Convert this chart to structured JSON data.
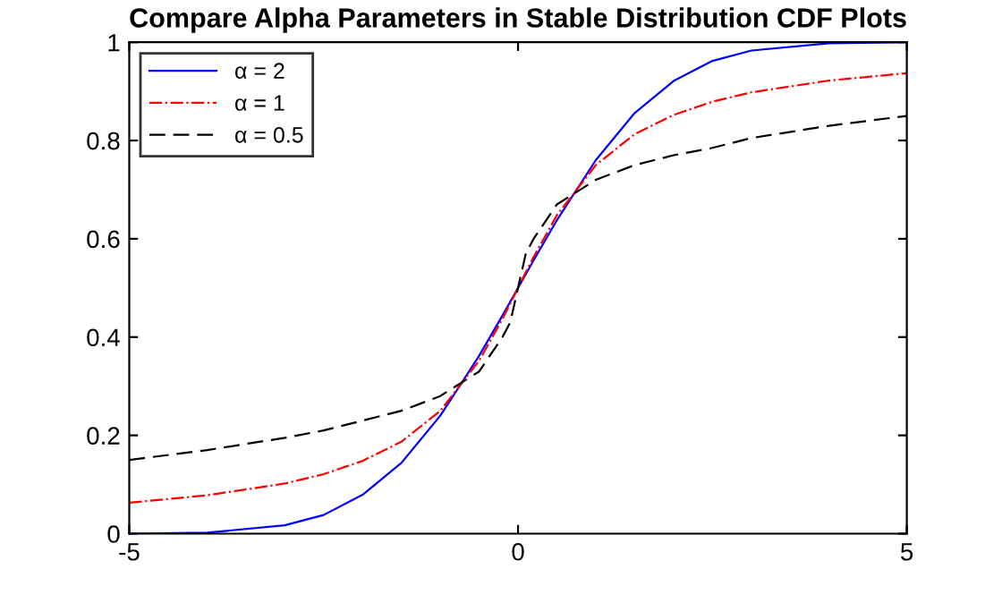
{
  "chart_data": {
    "type": "line",
    "title": "Compare Alpha Parameters in Stable Distribution CDF Plots",
    "x": [
      -5,
      -4,
      -3,
      -2.5,
      -2,
      -1.5,
      -1,
      -0.5,
      -0.2,
      -0.1,
      0,
      0.1,
      0.2,
      0.5,
      1,
      1.5,
      2,
      2.5,
      3,
      4,
      5
    ],
    "series": [
      {
        "name": "α = 2",
        "color": "#0000ff",
        "line_style": "solid",
        "values": [
          0,
          0.002,
          0.017,
          0.038,
          0.079,
          0.144,
          0.24,
          0.362,
          0.444,
          0.472,
          0.5,
          0.528,
          0.556,
          0.638,
          0.76,
          0.856,
          0.921,
          0.962,
          0.983,
          0.998,
          1
        ]
      },
      {
        "name": "α = 1",
        "color": "#ff0000",
        "line_style": "dashdot",
        "values": [
          0.063,
          0.078,
          0.102,
          0.121,
          0.148,
          0.187,
          0.25,
          0.352,
          0.437,
          0.468,
          0.5,
          0.532,
          0.563,
          0.648,
          0.75,
          0.813,
          0.852,
          0.879,
          0.898,
          0.922,
          0.937
        ]
      },
      {
        "name": "α = 0.5",
        "color": "#000000",
        "line_style": "dashed",
        "values": [
          0.15,
          0.17,
          0.195,
          0.21,
          0.23,
          0.25,
          0.28,
          0.33,
          0.4,
          0.43,
          0.5,
          0.57,
          0.6,
          0.67,
          0.72,
          0.75,
          0.77,
          0.785,
          0.805,
          0.83,
          0.85
        ]
      }
    ],
    "xlim": [
      -5,
      5
    ],
    "xticks": [
      -5,
      0,
      5
    ],
    "ylim": [
      0,
      1
    ],
    "yticks": [
      0,
      0.2,
      0.4,
      0.6,
      0.8,
      1
    ],
    "legend": "top left",
    "grid": false,
    "marker": "none"
  }
}
